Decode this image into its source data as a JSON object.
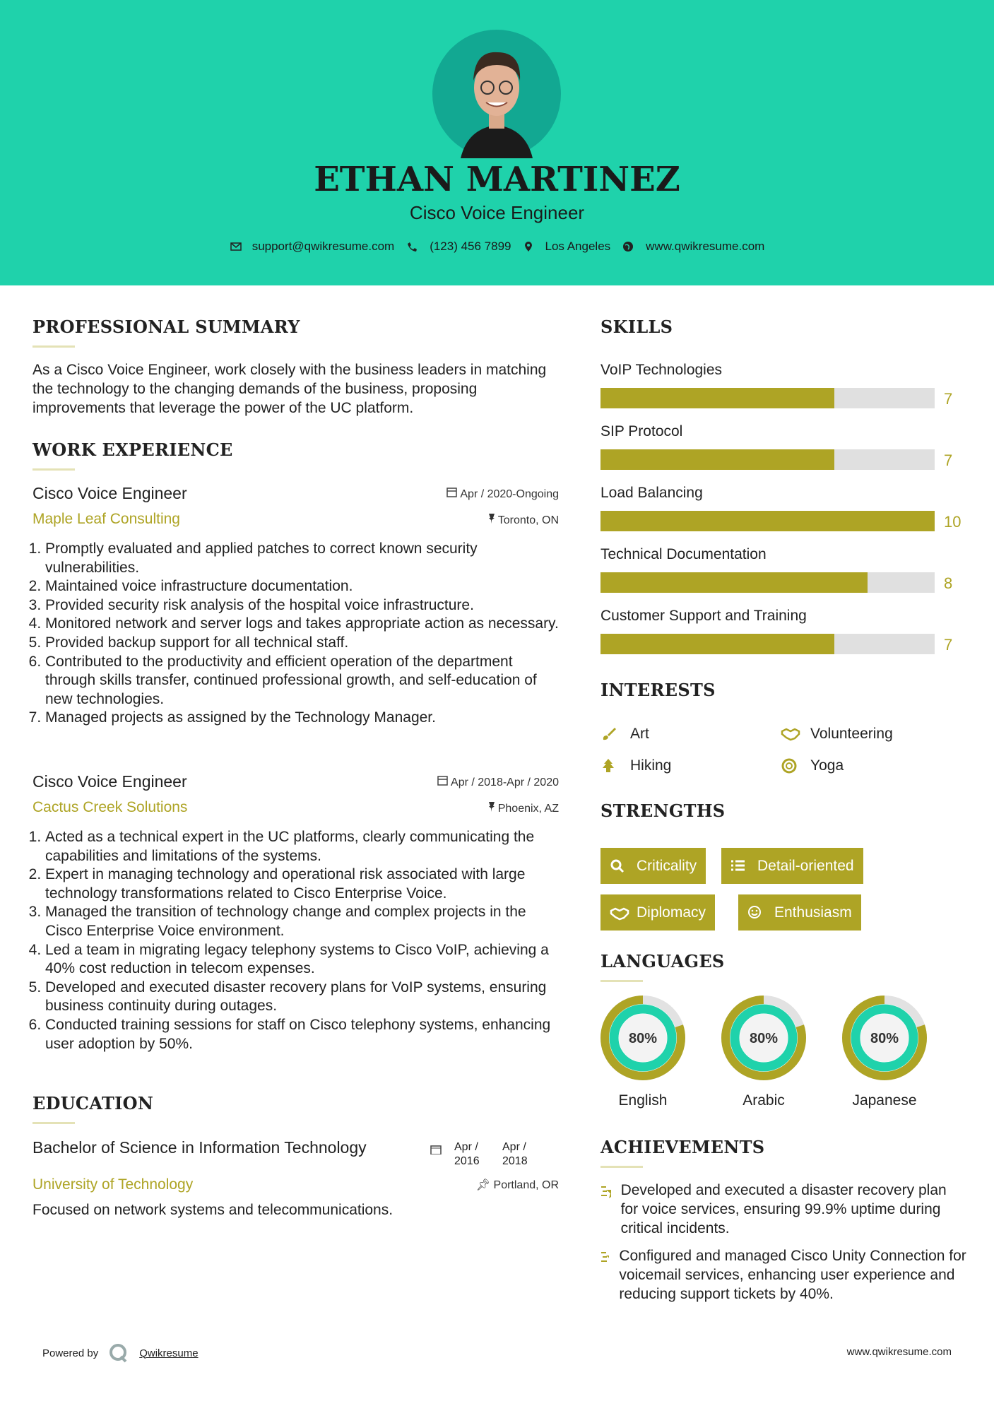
{
  "header": {
    "name": "ETHAN MARTINEZ",
    "title": "Cisco Voice Engineer",
    "contact": {
      "email": "support@qwikresume.com",
      "phone": "(123) 456 7899",
      "location": "Los Angeles",
      "website": "www.qwikresume.com"
    }
  },
  "summary": {
    "heading": "PROFESSIONAL SUMMARY",
    "text": "As a Cisco Voice Engineer, work closely with the business leaders in matching the technology to the changing demands of the business, proposing improvements that leverage the power of the UC platform."
  },
  "experience": {
    "heading": "WORK EXPERIENCE",
    "jobs": [
      {
        "title": "Cisco Voice Engineer",
        "date": "Apr / 2020-Ongoing",
        "company": "Maple Leaf Consulting",
        "location": "Toronto, ON",
        "items": [
          "Promptly evaluated and applied patches to correct known security vulnerabilities.",
          "Maintained voice infrastructure documentation.",
          "Provided security risk analysis of the hospital voice infrastructure.",
          "Monitored network and server logs and takes appropriate action as necessary.",
          "Provided backup support for all technical staff.",
          "Contributed to the productivity and efficient operation of the department through skills transfer, continued professional growth, and self-education of new technologies.",
          "Managed projects as assigned by the Technology Manager."
        ]
      },
      {
        "title": "Cisco Voice Engineer",
        "date": "Apr / 2018-Apr / 2020",
        "company": "Cactus Creek Solutions",
        "location": "Phoenix, AZ",
        "items": [
          "Acted as a technical expert in the UC platforms, clearly communicating the capabilities and limitations of the systems.",
          "Expert in managing technology and operational risk associated with large technology transformations related to Cisco Enterprise Voice.",
          "Managed the transition of technology change and complex projects in the Cisco Enterprise Voice environment.",
          "Led a team in migrating legacy telephony systems to Cisco VoIP, achieving a 40% cost reduction in telecom expenses.",
          "Developed and executed disaster recovery plans for VoIP systems, ensuring business continuity during outages.",
          "Conducted training sessions for staff on Cisco telephony systems, enhancing user adoption by 50%."
        ]
      }
    ]
  },
  "education": {
    "heading": "EDUCATION",
    "degree": "Bachelor of Science in Information Technology",
    "date_start": "Apr / 2016",
    "date_end": "Apr / 2018",
    "school": "University of Technology",
    "location": "Portland, OR",
    "text": "Focused on network systems and telecommunications."
  },
  "skills": {
    "heading": "SKILLS",
    "range": [
      0,
      10
    ],
    "items": [
      {
        "name": "VoIP Technologies",
        "value": 7
      },
      {
        "name": "SIP Protocol",
        "value": 7
      },
      {
        "name": "Load Balancing",
        "value": 10
      },
      {
        "name": "Technical Documentation",
        "value": 8
      },
      {
        "name": "Customer Support and Training",
        "value": 7
      }
    ]
  },
  "interests": {
    "heading": "INTERESTS",
    "items": [
      "Art",
      "Volunteering",
      "Hiking",
      "Yoga"
    ]
  },
  "strengths": {
    "heading": "STRENGTHS",
    "items": [
      "Criticality",
      "Detail-oriented",
      "Diplomacy",
      "Enthusiasm"
    ]
  },
  "languages": {
    "heading": "LANGUAGES",
    "range": [
      0,
      100
    ],
    "items": [
      {
        "name": "English",
        "level": {
          "value": 80,
          "label": "80%"
        }
      },
      {
        "name": "Arabic",
        "level": {
          "value": 80,
          "label": "80%"
        }
      },
      {
        "name": "Japanese",
        "level": {
          "value": 80,
          "label": "80%"
        }
      }
    ]
  },
  "achievements": {
    "heading": "ACHIEVEMENTS",
    "items": [
      "Developed and executed a disaster recovery plan for voice services, ensuring 99.9% uptime during critical incidents.",
      "Configured and managed Cisco Unity Connection for voicemail services, enhancing user experience and reducing support tickets by 40%."
    ]
  },
  "footer": {
    "powered_by": "Powered by",
    "brand": "Qwikresume",
    "website": "www.qwikresume.com"
  }
}
